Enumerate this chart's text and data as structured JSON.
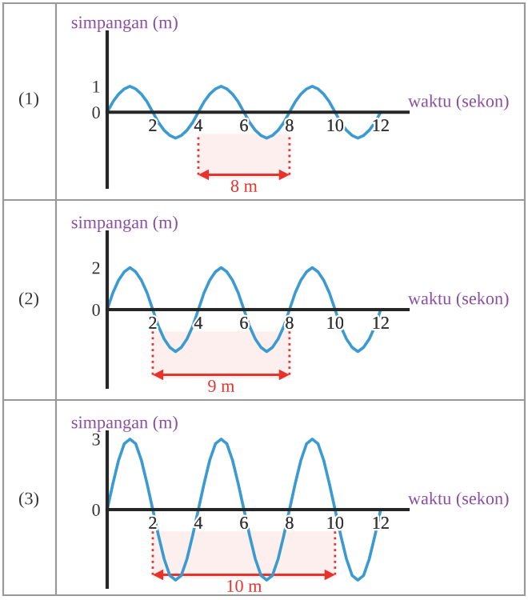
{
  "chart_data": [
    {
      "type": "line",
      "xlabel": "waktu (sekon)",
      "ylabel": "simpangan (m)",
      "annotations": [
        "(1)"
      ],
      "x": [
        0,
        0.25,
        0.5,
        0.75,
        1,
        1.25,
        1.5,
        1.75,
        2,
        2.25,
        2.5,
        2.75,
        3,
        3.25,
        3.5,
        3.75,
        4,
        4.25,
        4.5,
        4.75,
        5,
        5.25,
        5.5,
        5.75,
        6,
        6.25,
        6.5,
        6.75,
        7,
        7.25,
        7.5,
        7.75,
        8,
        8.25,
        8.5,
        8.75,
        9,
        9.25,
        9.5,
        9.75,
        10,
        10.25,
        10.5,
        10.75,
        11,
        11.25,
        11.5,
        11.75,
        12
      ],
      "series": [
        {
          "color": "#3a9ad1",
          "values": [
            0,
            0.4,
            0.7,
            0.9,
            1,
            0.9,
            0.7,
            0.4,
            0,
            -0.4,
            -0.7,
            -0.9,
            -1,
            -0.9,
            -0.7,
            -0.4,
            0,
            0.4,
            0.7,
            0.9,
            1,
            0.9,
            0.7,
            0.4,
            0,
            -0.4,
            -0.7,
            -0.9,
            -1,
            -0.9,
            -0.7,
            -0.4,
            0,
            0.4,
            0.7,
            0.9,
            1,
            0.9,
            0.7,
            0.4,
            0,
            -0.4,
            -0.7,
            -0.9,
            -1,
            -0.9,
            -0.7,
            -0.4,
            0
          ]
        }
      ],
      "xlim": [
        0,
        13.2
      ],
      "ylim": [
        -2.9,
        3.1
      ],
      "xticks": [
        2,
        4,
        6,
        8,
        10,
        12
      ],
      "yticks": [
        0,
        1
      ],
      "bands": [
        {
          "axis": "x",
          "from": 4,
          "to": 8,
          "label": "8 m",
          "color": "#e8322b"
        }
      ]
    },
    {
      "type": "line",
      "xlabel": "waktu (sekon)",
      "ylabel": "simpangan (m)",
      "annotations": [
        "(2)"
      ],
      "x": [
        0,
        0.25,
        0.5,
        0.75,
        1,
        1.25,
        1.5,
        1.75,
        2,
        2.25,
        2.5,
        2.75,
        3,
        3.25,
        3.5,
        3.75,
        4,
        4.25,
        4.5,
        4.75,
        5,
        5.25,
        5.5,
        5.75,
        6,
        6.25,
        6.5,
        6.75,
        7,
        7.25,
        7.5,
        7.75,
        8,
        8.25,
        8.5,
        8.75,
        9,
        9.25,
        9.5,
        9.75,
        10,
        10.25,
        10.5,
        10.75,
        11,
        11.25,
        11.5,
        11.75,
        12
      ],
      "series": [
        {
          "color": "#3a9ad1",
          "values": [
            0,
            0.8,
            1.4,
            1.8,
            2,
            1.8,
            1.4,
            0.8,
            0,
            -0.8,
            -1.4,
            -1.8,
            -2,
            -1.8,
            -1.4,
            -0.8,
            0,
            0.8,
            1.4,
            1.8,
            2,
            1.8,
            1.4,
            0.8,
            0,
            -0.8,
            -1.4,
            -1.8,
            -2,
            -1.8,
            -1.4,
            -0.8,
            0,
            0.8,
            1.4,
            1.8,
            2,
            1.8,
            1.4,
            0.8,
            0,
            -0.8,
            -1.4,
            -1.8,
            -2,
            -1.8,
            -1.4,
            -0.8,
            0
          ]
        }
      ],
      "xlim": [
        0,
        13.2
      ],
      "ylim": [
        -3.7,
        3.7
      ],
      "xticks": [
        2,
        4,
        6,
        8,
        10,
        12
      ],
      "yticks": [
        0,
        2
      ],
      "bands": [
        {
          "axis": "x",
          "from": 2,
          "to": 8,
          "label": "9 m",
          "color": "#e8322b"
        }
      ]
    },
    {
      "type": "line",
      "xlabel": "waktu (sekon)",
      "ylabel": "simpangan (m)",
      "annotations": [
        "(3)"
      ],
      "x": [
        0,
        0.25,
        0.5,
        0.75,
        1,
        1.25,
        1.5,
        1.75,
        2,
        2.25,
        2.5,
        2.75,
        3,
        3.25,
        3.5,
        3.75,
        4,
        4.25,
        4.5,
        4.75,
        5,
        5.25,
        5.5,
        5.75,
        6,
        6.25,
        6.5,
        6.75,
        7,
        7.25,
        7.5,
        7.75,
        8,
        8.25,
        8.5,
        8.75,
        9,
        9.25,
        9.5,
        9.75,
        10,
        10.25,
        10.5,
        10.75,
        11,
        11.25,
        11.5,
        11.75,
        12
      ],
      "series": [
        {
          "color": "#3a9ad1",
          "values": [
            0,
            1.1,
            2.1,
            2.8,
            3,
            2.8,
            2.1,
            1.1,
            0,
            -1.1,
            -2.1,
            -2.8,
            -3,
            -2.8,
            -2.1,
            -1.1,
            0,
            1.1,
            2.1,
            2.8,
            3,
            2.8,
            2.1,
            1.1,
            0,
            -1.1,
            -2.1,
            -2.8,
            -3,
            -2.8,
            -2.1,
            -1.1,
            0,
            1.1,
            2.1,
            2.8,
            3,
            2.8,
            2.1,
            1.1,
            0,
            -1.1,
            -2.1,
            -2.8,
            -3,
            -2.8,
            -2.1,
            -1.1,
            0
          ]
        }
      ],
      "xlim": [
        0,
        13.2
      ],
      "ylim": [
        -3.3,
        3.3
      ],
      "xticks": [
        2,
        4,
        6,
        8,
        10,
        12
      ],
      "yticks": [
        0,
        3
      ],
      "bands": [
        {
          "axis": "x",
          "from": 2,
          "to": 10,
          "label": "10 m",
          "color": "#e8322b"
        }
      ]
    }
  ]
}
